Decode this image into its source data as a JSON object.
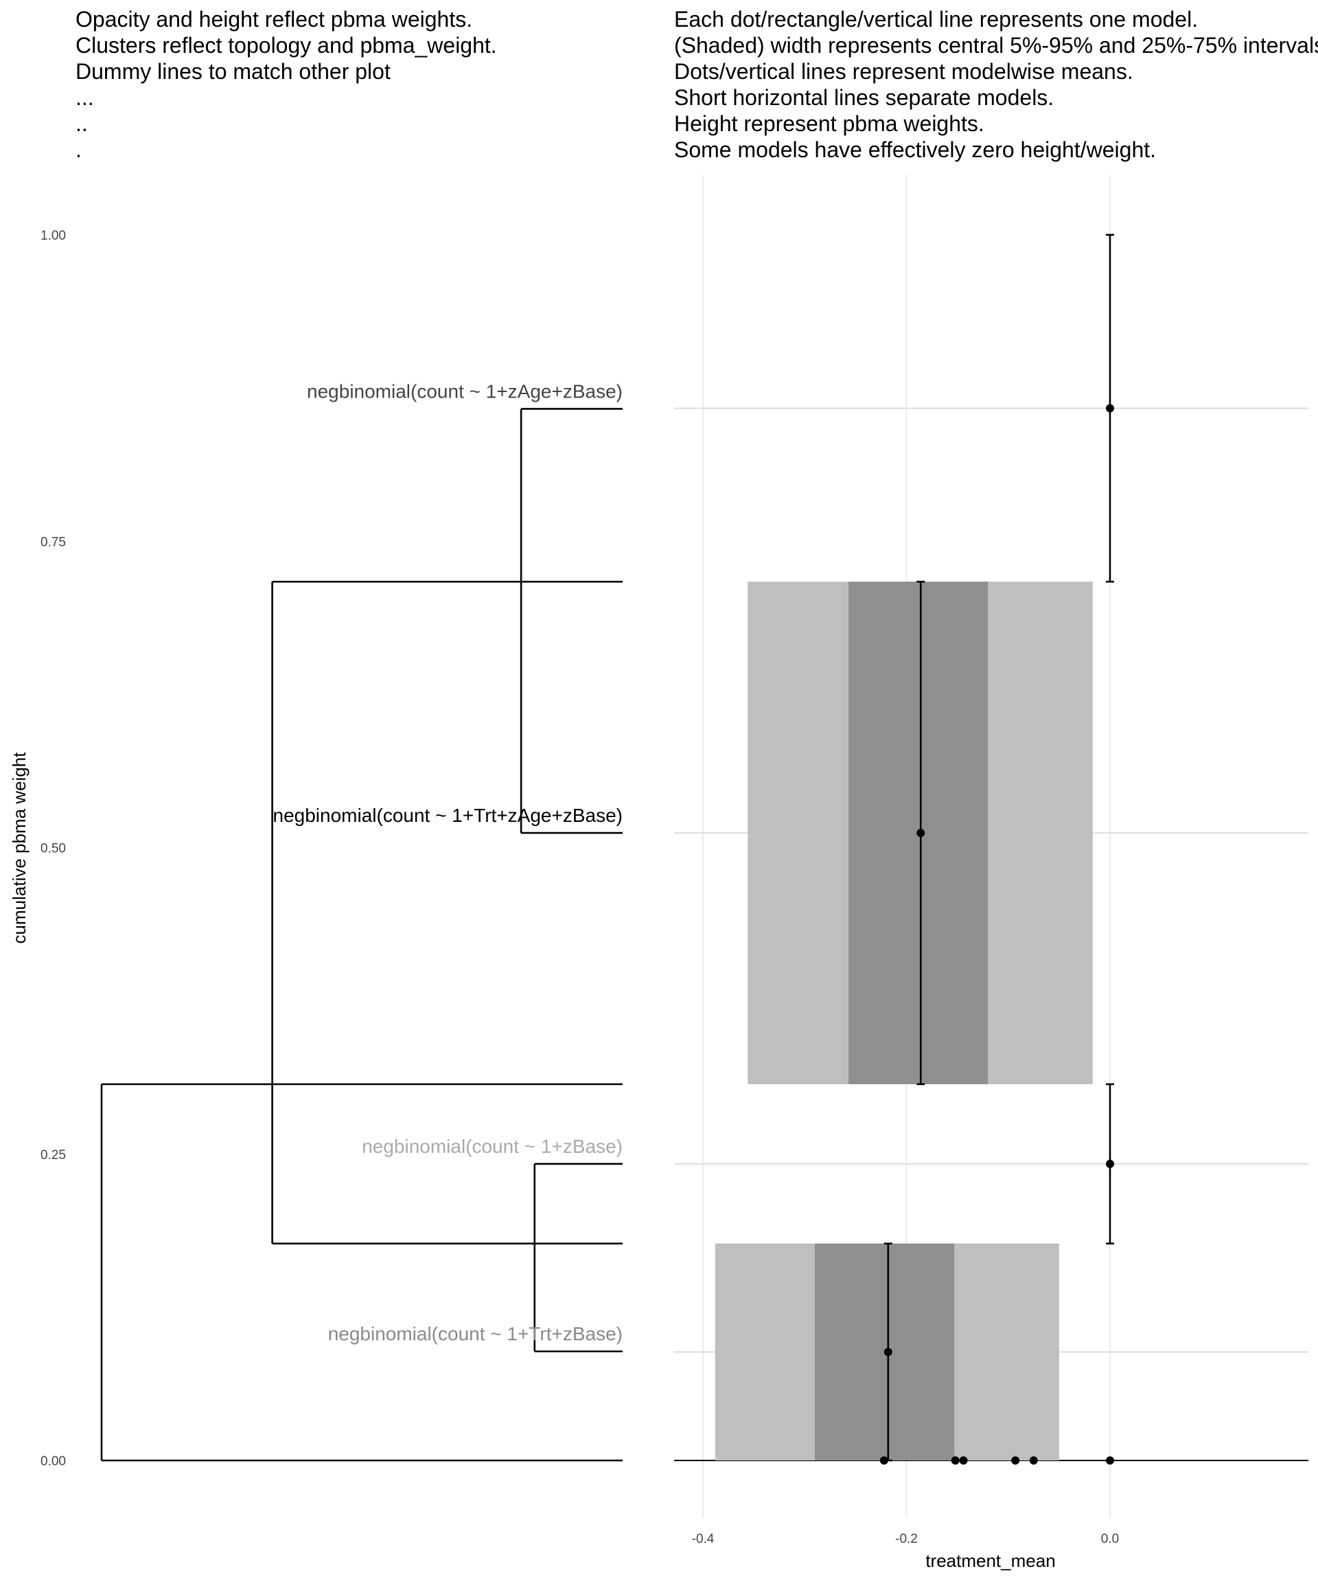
{
  "chart_data": [
    {
      "type": "dendrogram",
      "annotation_lines": [
        "Opacity and height reflect pbma weights.",
        "Clusters reflect topology and pbma_weight.",
        "Dummy lines to match other plot",
        "...",
        "..",
        "."
      ],
      "ylabel": "cumulative pbma weight",
      "ylim": [
        -0.06,
        1.05
      ],
      "y_ticks": [
        {
          "value": 0.0,
          "label": "0.00"
        },
        {
          "value": 0.25,
          "label": "0.25"
        },
        {
          "value": 0.5,
          "label": "0.50"
        },
        {
          "value": 0.75,
          "label": "0.75"
        },
        {
          "value": 1.0,
          "label": "1.00"
        }
      ],
      "leaves": [
        {
          "label": "negbinomial(count ~ 1+zAge+zBase)",
          "y": 0.858,
          "color": "#444444"
        },
        {
          "label": "negbinomial(count ~ 1+Trt+zAge+zBase)",
          "y": 0.512,
          "color": "#000000"
        },
        {
          "label": "negbinomial(count ~ 1+zBase)",
          "y": 0.242,
          "color": "#aaaaaa"
        },
        {
          "label": "negbinomial(count ~ 1+Trt+zBase)",
          "y": 0.089,
          "color": "#8a8a8a"
        }
      ],
      "merges": [
        {
          "height": 0.113,
          "y_low": 0.512,
          "y_high": 0.858,
          "y_node": 0.717
        },
        {
          "height": 0.098,
          "y_low": 0.089,
          "y_high": 0.242,
          "y_node": 0.177
        },
        {
          "height": 0.39,
          "y_low": 0.177,
          "y_high": 0.717,
          "y_node": 0.307
        },
        {
          "height": 0.58,
          "y_low": 0.0,
          "y_high": 0.307,
          "y_node": 0.0
        }
      ]
    },
    {
      "type": "interval",
      "annotation_lines": [
        "Each dot/rectangle/vertical line represents one model.",
        "(Shaded) width represents central 5%-95% and 25%-75% intervals.",
        "Dots/vertical lines represent modelwise means.",
        "Short horizontal lines separate models.",
        "Height represent pbma weights.",
        "Some models have effectively zero height/weight."
      ],
      "xlabel": "treatment_mean",
      "xlim": [
        -0.43,
        0.19
      ],
      "ylim": [
        -0.06,
        1.05
      ],
      "x_ticks": [
        {
          "value": -0.4,
          "label": "-0.4"
        },
        {
          "value": -0.2,
          "label": "-0.2"
        },
        {
          "value": 0.0,
          "label": "0.0"
        }
      ],
      "models": [
        {
          "mean": 0.0,
          "y_low": 0.717,
          "y_high": 1.0,
          "q05": null,
          "q25": null,
          "q75": null,
          "q95": null
        },
        {
          "mean": -0.186,
          "y_low": 0.307,
          "y_high": 0.717,
          "q05": -0.356,
          "q25": -0.257,
          "q75": -0.12,
          "q95": -0.017
        },
        {
          "mean": 0.0,
          "y_low": 0.177,
          "y_high": 0.307,
          "q05": null,
          "q25": null,
          "q75": null,
          "q95": null
        },
        {
          "mean": -0.218,
          "y_low": 0.0,
          "y_high": 0.177,
          "q05": -0.388,
          "q25": -0.29,
          "q75": -0.153,
          "q95": -0.05
        }
      ],
      "zero_weight_means": [
        -0.222,
        -0.152,
        -0.144,
        -0.093,
        -0.075,
        0.0
      ]
    }
  ]
}
